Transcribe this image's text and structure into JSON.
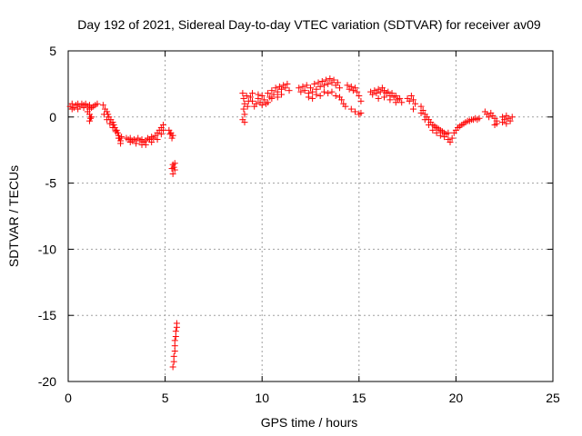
{
  "chart_data": {
    "type": "scatter",
    "title": "Day 192 of 2021, Sidereal Day-to-day VTEC variation (SDTVAR) for receiver av09",
    "xlabel": "GPS time / hours",
    "ylabel": "SDTVAR / TECUs",
    "xlim": [
      0,
      25
    ],
    "ylim": [
      -20,
      5
    ],
    "xticks": [
      0,
      5,
      10,
      15,
      20,
      25
    ],
    "yticks": [
      5,
      0,
      -5,
      -10,
      -15,
      -20
    ],
    "grid": true,
    "marker": "+",
    "color": "#ff0000",
    "series": [
      {
        "name": "SDTVAR",
        "points": [
          [
            0.1,
            0.8
          ],
          [
            0.2,
            1.0
          ],
          [
            0.3,
            0.7
          ],
          [
            0.4,
            0.9
          ],
          [
            0.5,
            1.0
          ],
          [
            0.6,
            0.8
          ],
          [
            0.7,
            1.0
          ],
          [
            0.8,
            0.9
          ],
          [
            0.9,
            1.0
          ],
          [
            1.0,
            0.8
          ],
          [
            1.1,
            0.9
          ],
          [
            1.2,
            0.7
          ],
          [
            1.3,
            0.8
          ],
          [
            1.4,
            0.9
          ],
          [
            1.5,
            1.0
          ],
          [
            0.2,
            0.6
          ],
          [
            0.5,
            0.6
          ],
          [
            0.8,
            0.7
          ],
          [
            1.1,
            0.6
          ],
          [
            1.1,
            0.2
          ],
          [
            1.15,
            -0.1
          ],
          [
            1.1,
            -0.3
          ],
          [
            1.2,
            0.0
          ],
          [
            1.0,
            0.4
          ],
          [
            1.8,
            0.9
          ],
          [
            1.9,
            0.6
          ],
          [
            2.0,
            0.4
          ],
          [
            2.05,
            0.2
          ],
          [
            2.1,
            0.0
          ],
          [
            2.2,
            -0.2
          ],
          [
            2.3,
            -0.4
          ],
          [
            2.35,
            -0.6
          ],
          [
            2.4,
            -0.8
          ],
          [
            2.5,
            -1.0
          ],
          [
            2.55,
            -1.2
          ],
          [
            2.6,
            -1.4
          ],
          [
            2.65,
            -1.6
          ],
          [
            2.7,
            -1.8
          ],
          [
            2.75,
            -1.5
          ],
          [
            1.85,
            0.2
          ],
          [
            2.0,
            -0.2
          ],
          [
            2.15,
            -0.5
          ],
          [
            2.3,
            -0.8
          ],
          [
            2.45,
            -1.1
          ],
          [
            2.6,
            -1.6
          ],
          [
            2.7,
            -2.0
          ],
          [
            3.0,
            -1.6
          ],
          [
            3.1,
            -1.7
          ],
          [
            3.2,
            -1.6
          ],
          [
            3.3,
            -1.8
          ],
          [
            3.4,
            -1.7
          ],
          [
            3.5,
            -1.8
          ],
          [
            3.6,
            -1.6
          ],
          [
            3.7,
            -1.8
          ],
          [
            3.8,
            -1.7
          ],
          [
            3.9,
            -1.9
          ],
          [
            4.0,
            -1.8
          ],
          [
            4.1,
            -1.6
          ],
          [
            4.2,
            -1.7
          ],
          [
            4.3,
            -1.5
          ],
          [
            4.4,
            -1.6
          ],
          [
            4.5,
            -1.4
          ],
          [
            4.6,
            -1.2
          ],
          [
            4.7,
            -1.0
          ],
          [
            4.8,
            -0.8
          ],
          [
            4.9,
            -0.6
          ],
          [
            3.2,
            -1.9
          ],
          [
            3.5,
            -2.0
          ],
          [
            3.8,
            -2.1
          ],
          [
            4.0,
            -2.1
          ],
          [
            4.3,
            -1.9
          ],
          [
            4.6,
            -1.7
          ],
          [
            4.8,
            -1.3
          ],
          [
            4.9,
            -1.0
          ],
          [
            5.2,
            -1.0
          ],
          [
            5.3,
            -1.2
          ],
          [
            5.4,
            -1.4
          ],
          [
            5.35,
            -1.6
          ],
          [
            5.25,
            -1.3
          ],
          [
            5.4,
            -3.6
          ],
          [
            5.45,
            -3.8
          ],
          [
            5.5,
            -4.0
          ],
          [
            5.35,
            -3.9
          ],
          [
            5.4,
            -4.3
          ],
          [
            5.5,
            -3.5
          ],
          [
            5.4,
            -18.9
          ],
          [
            5.45,
            -18.5
          ],
          [
            5.45,
            -18.1
          ],
          [
            5.5,
            -17.7
          ],
          [
            5.5,
            -17.3
          ],
          [
            5.5,
            -16.9
          ],
          [
            5.55,
            -16.6
          ],
          [
            5.55,
            -16.2
          ],
          [
            5.6,
            -15.9
          ],
          [
            5.6,
            -15.6
          ],
          [
            9.0,
            1.8
          ],
          [
            9.05,
            1.4
          ],
          [
            9.1,
            1.0
          ],
          [
            9.05,
            0.6
          ],
          [
            9.1,
            0.2
          ],
          [
            9.0,
            -0.2
          ],
          [
            9.1,
            -0.4
          ],
          [
            9.2,
            1.6
          ],
          [
            9.3,
            1.2
          ],
          [
            9.25,
            0.8
          ],
          [
            9.4,
            1.5
          ],
          [
            9.5,
            1.2
          ],
          [
            9.6,
            0.8
          ],
          [
            9.7,
            1.0
          ],
          [
            9.8,
            1.4
          ],
          [
            9.9,
            1.1
          ],
          [
            10.0,
            1.6
          ],
          [
            10.1,
            1.3
          ],
          [
            10.2,
            1.0
          ],
          [
            10.3,
            1.8
          ],
          [
            10.4,
            1.5
          ],
          [
            10.5,
            2.0
          ],
          [
            10.6,
            1.7
          ],
          [
            10.7,
            2.2
          ],
          [
            10.8,
            1.9
          ],
          [
            10.9,
            2.3
          ],
          [
            11.0,
            2.1
          ],
          [
            11.1,
            2.4
          ],
          [
            11.2,
            2.2
          ],
          [
            11.3,
            2.5
          ],
          [
            11.4,
            2.0
          ],
          [
            9.5,
            1.8
          ],
          [
            9.8,
            1.7
          ],
          [
            10.0,
            0.9
          ],
          [
            10.3,
            1.1
          ],
          [
            10.5,
            1.4
          ],
          [
            10.8,
            1.5
          ],
          [
            11.0,
            1.7
          ],
          [
            11.9,
            2.2
          ],
          [
            12.0,
            1.9
          ],
          [
            12.1,
            2.3
          ],
          [
            12.2,
            2.0
          ],
          [
            12.3,
            2.4
          ],
          [
            12.4,
            1.8
          ],
          [
            12.5,
            2.2
          ],
          [
            12.6,
            1.9
          ],
          [
            12.7,
            2.5
          ],
          [
            12.8,
            2.1
          ],
          [
            12.9,
            2.6
          ],
          [
            13.0,
            2.3
          ],
          [
            13.1,
            2.7
          ],
          [
            13.2,
            2.4
          ],
          [
            13.3,
            2.8
          ],
          [
            13.4,
            2.5
          ],
          [
            13.5,
            2.9
          ],
          [
            13.6,
            2.6
          ],
          [
            13.7,
            2.8
          ],
          [
            13.8,
            2.4
          ],
          [
            13.9,
            2.6
          ],
          [
            14.0,
            2.2
          ],
          [
            12.4,
            1.5
          ],
          [
            12.6,
            1.4
          ],
          [
            12.8,
            1.7
          ],
          [
            13.0,
            1.6
          ],
          [
            13.2,
            1.9
          ],
          [
            13.4,
            1.8
          ],
          [
            13.6,
            1.9
          ],
          [
            13.8,
            1.6
          ],
          [
            14.0,
            1.5
          ],
          [
            14.1,
            1.3
          ],
          [
            14.2,
            1.0
          ],
          [
            14.3,
            0.8
          ],
          [
            14.4,
            2.4
          ],
          [
            14.5,
            2.1
          ],
          [
            14.6,
            2.3
          ],
          [
            14.7,
            2.0
          ],
          [
            14.8,
            2.2
          ],
          [
            14.9,
            1.9
          ],
          [
            15.0,
            1.6
          ],
          [
            15.1,
            1.2
          ],
          [
            14.6,
            0.6
          ],
          [
            14.8,
            0.4
          ],
          [
            15.0,
            0.2
          ],
          [
            15.1,
            0.3
          ],
          [
            15.6,
            1.9
          ],
          [
            15.7,
            1.7
          ],
          [
            15.8,
            2.0
          ],
          [
            15.9,
            1.8
          ],
          [
            16.0,
            2.1
          ],
          [
            16.1,
            1.9
          ],
          [
            16.2,
            2.2
          ],
          [
            16.3,
            2.0
          ],
          [
            16.4,
            1.8
          ],
          [
            16.5,
            1.9
          ],
          [
            16.6,
            1.6
          ],
          [
            16.7,
            1.8
          ],
          [
            16.8,
            1.5
          ],
          [
            16.9,
            1.6
          ],
          [
            17.0,
            1.3
          ],
          [
            17.1,
            1.4
          ],
          [
            17.2,
            1.1
          ],
          [
            16.0,
            1.4
          ],
          [
            16.3,
            1.5
          ],
          [
            16.6,
            1.3
          ],
          [
            16.9,
            1.1
          ],
          [
            17.5,
            1.4
          ],
          [
            17.6,
            1.2
          ],
          [
            17.7,
            1.6
          ],
          [
            17.8,
            1.3
          ],
          [
            17.9,
            1.0
          ],
          [
            17.8,
            0.6
          ],
          [
            18.2,
            0.8
          ],
          [
            18.3,
            0.5
          ],
          [
            18.4,
            0.2
          ],
          [
            18.5,
            0.0
          ],
          [
            18.6,
            -0.2
          ],
          [
            18.7,
            -0.4
          ],
          [
            18.8,
            -0.6
          ],
          [
            18.9,
            -0.7
          ],
          [
            19.0,
            -0.8
          ],
          [
            19.1,
            -0.9
          ],
          [
            19.2,
            -1.0
          ],
          [
            19.3,
            -1.1
          ],
          [
            19.4,
            -1.2
          ],
          [
            19.5,
            -1.3
          ],
          [
            19.6,
            -1.2
          ],
          [
            18.2,
            0.3
          ],
          [
            18.4,
            -0.2
          ],
          [
            18.6,
            -0.6
          ],
          [
            18.8,
            -1.0
          ],
          [
            19.0,
            -1.2
          ],
          [
            19.2,
            -1.4
          ],
          [
            19.4,
            -1.5
          ],
          [
            19.6,
            -1.7
          ],
          [
            19.7,
            -1.9
          ],
          [
            19.8,
            -1.6
          ],
          [
            19.9,
            -1.2
          ],
          [
            20.0,
            -1.0
          ],
          [
            20.1,
            -0.8
          ],
          [
            20.2,
            -0.7
          ],
          [
            20.3,
            -0.6
          ],
          [
            20.4,
            -0.5
          ],
          [
            20.5,
            -0.4
          ],
          [
            20.6,
            -0.3
          ],
          [
            20.7,
            -0.3
          ],
          [
            20.8,
            -0.2
          ],
          [
            20.9,
            -0.2
          ],
          [
            21.0,
            -0.1
          ],
          [
            21.1,
            -0.2
          ],
          [
            21.2,
            -0.1
          ],
          [
            21.5,
            0.4
          ],
          [
            21.6,
            0.2
          ],
          [
            21.7,
            0.0
          ],
          [
            21.8,
            0.3
          ],
          [
            21.9,
            0.1
          ],
          [
            22.0,
            -0.1
          ],
          [
            22.1,
            -0.3
          ],
          [
            22.0,
            -0.6
          ],
          [
            22.1,
            -0.5
          ],
          [
            22.4,
            0.0
          ],
          [
            22.5,
            -0.2
          ],
          [
            22.6,
            0.1
          ],
          [
            22.7,
            -0.1
          ],
          [
            22.8,
            -0.3
          ],
          [
            22.6,
            -0.5
          ],
          [
            22.4,
            -0.4
          ],
          [
            22.9,
            0.0
          ]
        ]
      }
    ]
  }
}
